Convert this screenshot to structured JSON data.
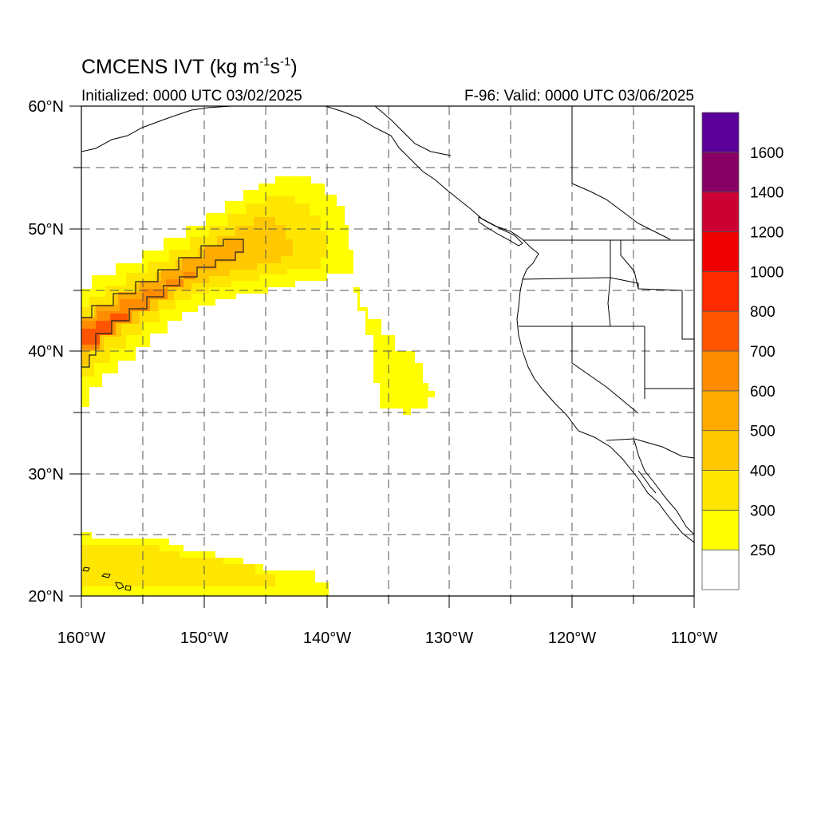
{
  "title": {
    "product": "CMCENS IVT",
    "units_prefix": "(kg m",
    "exp1": "-1",
    "mid": "s",
    "exp2": "-1",
    "suffix": ")"
  },
  "initialized": "Initialized: 0000 UTC 03/02/2025",
  "valid": "F-96: Valid: 0000 UTC 03/06/2025",
  "map": {
    "lon_range": [
      -160,
      -110
    ],
    "lat_range": [
      20,
      60
    ],
    "lon_labels": [
      "160°W",
      "150°W",
      "140°W",
      "130°W",
      "120°W",
      "110°W"
    ],
    "lat_labels": [
      "20°N",
      "30°N",
      "40°N",
      "50°N",
      "60°N"
    ],
    "grid": "dashed every 5 degrees"
  },
  "colorbar": {
    "labels": [
      "250",
      "300",
      "400",
      "500",
      "600",
      "700",
      "800",
      "1000",
      "1200",
      "1400",
      "1600"
    ],
    "colors": [
      "#ffffff",
      "#ffff00",
      "#ffe600",
      "#ffc800",
      "#ffaa00",
      "#ff8c00",
      "#ff5500",
      "#ff2a00",
      "#ee0000",
      "#cc0033",
      "#880066",
      "#5a0099"
    ]
  },
  "chart_data": {
    "type": "heatmap",
    "variable": "IVT",
    "unit": "kg m-1 s-1",
    "contour_levels": [
      250,
      300,
      400,
      500,
      600,
      700,
      800,
      1000,
      1200,
      1400,
      1600
    ],
    "highlighted_contour": 500,
    "features": [
      {
        "region": "atmospheric river core",
        "lon_range": [
          -160,
          -138
        ],
        "lat_range": [
          35,
          54
        ],
        "max_ivt_band": "600-700"
      },
      {
        "region": "detached plume",
        "lon_range": [
          -138,
          -131
        ],
        "lat_range": [
          35,
          45
        ],
        "max_ivt_band": "250-300"
      },
      {
        "region": "subtropical band near Hawaii",
        "lon_range": [
          -160,
          -140
        ],
        "lat_range": [
          20,
          25
        ],
        "max_ivt_band": "300-400"
      }
    ]
  }
}
